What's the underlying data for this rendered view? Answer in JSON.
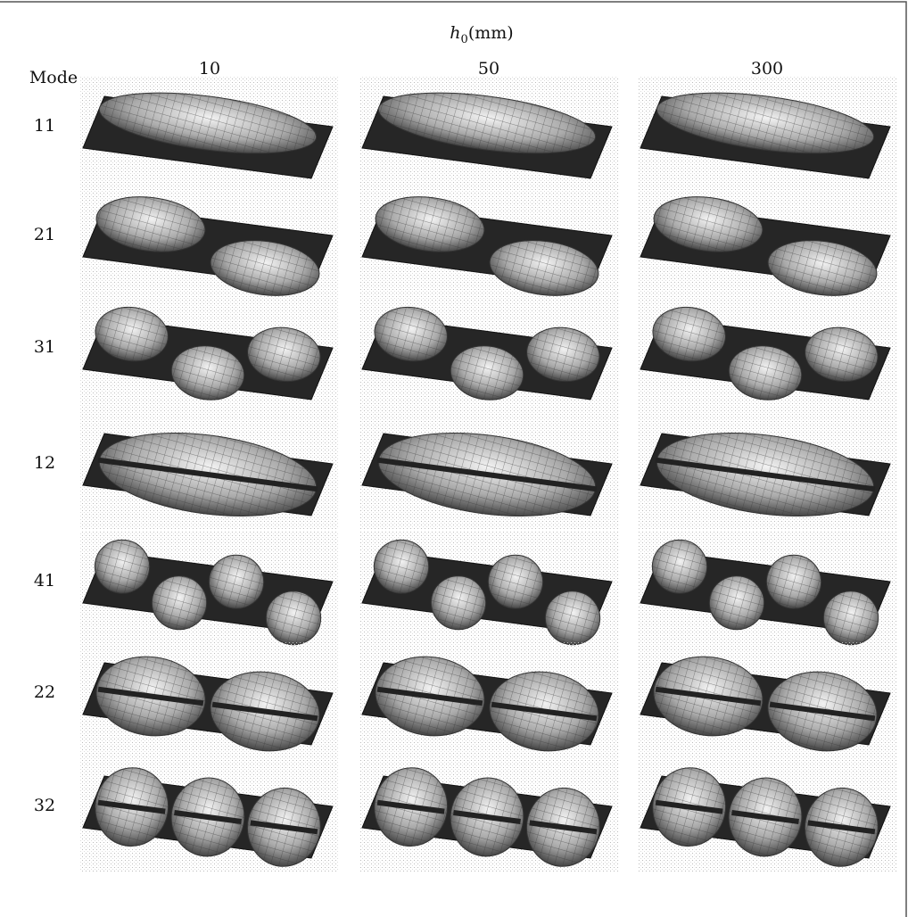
{
  "header": {
    "symbol": "h",
    "subscript": "0",
    "unit": "(mm)"
  },
  "row_header": "Mode",
  "columns": [
    "10",
    "50",
    "300"
  ],
  "rows": [
    "11",
    "21",
    "31",
    "12",
    "41",
    "22",
    "32"
  ]
}
